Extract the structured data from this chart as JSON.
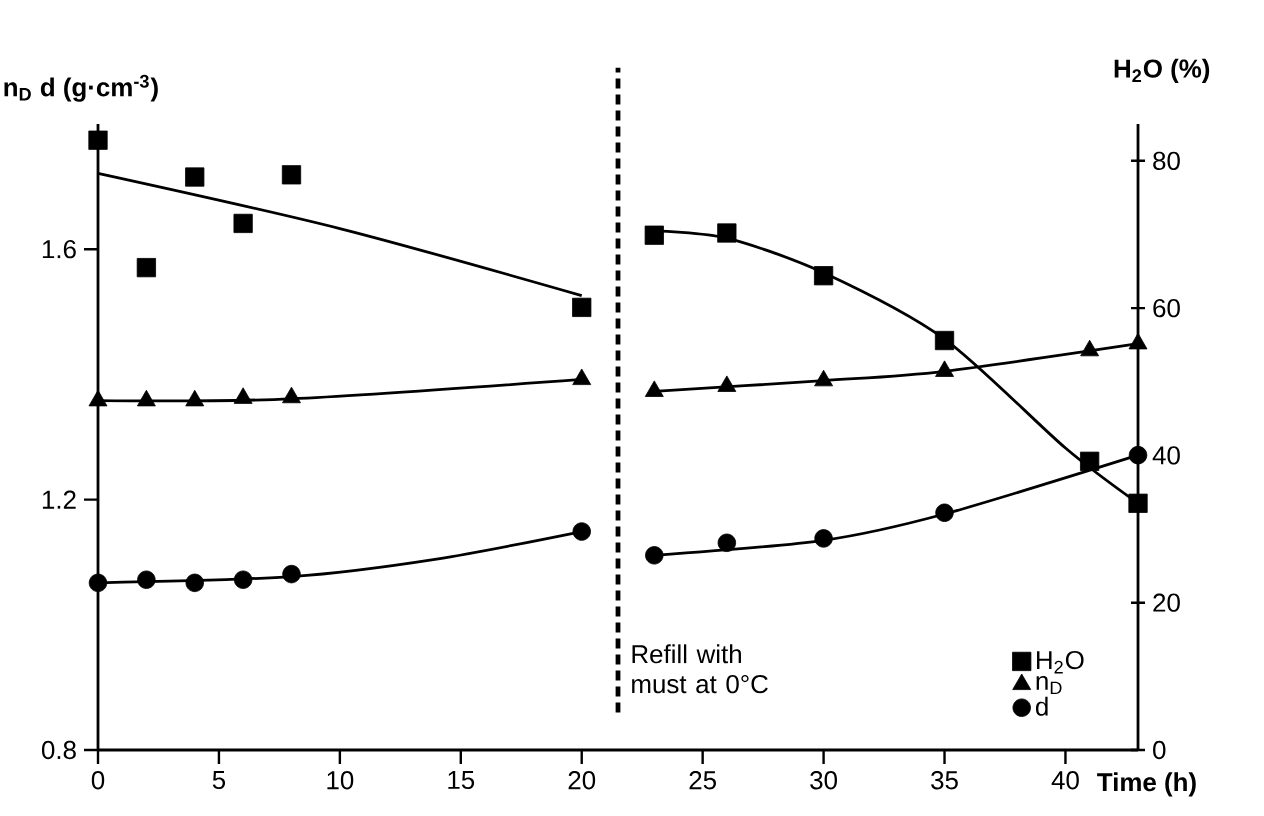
{
  "chart_data": {
    "type": "line",
    "xlabel": "Time (h)",
    "ylabel": "n$_{D}$ d (g·cm$^{-3}$)",
    "y2label": "H$_{2}$O (%)",
    "xlim": [
      0,
      43
    ],
    "xticks": [
      0,
      5,
      10,
      15,
      20,
      25,
      30,
      35,
      40
    ],
    "ylim": [
      0.8,
      1.8
    ],
    "yticks": [
      0.8,
      1.2,
      1.6
    ],
    "y2lim": [
      0,
      85
    ],
    "y2ticks": [
      0,
      20,
      40,
      60,
      80
    ],
    "legend": "bottom right",
    "ref_lines": [
      {
        "axis": "x",
        "value": 21.5,
        "label": "Refill with must at 0°C",
        "line_style": "dashed",
        "color": "#000000"
      }
    ],
    "series": [
      {
        "name": "H$_{2}$O",
        "type": "scatter",
        "marker": "square",
        "axis": "y2",
        "color": "#000000",
        "x": [
          0,
          2,
          4,
          6,
          8,
          20,
          23,
          26,
          30,
          35,
          41,
          43
        ],
        "values": [
          82.8,
          65.5,
          77.8,
          71.5,
          78.1,
          60.1,
          69.9,
          70.2,
          64.4,
          55.6,
          39.2,
          33.5
        ]
      },
      {
        "name": "n$_{D}$",
        "type": "scatter",
        "marker": "triangle",
        "axis": "y",
        "color": "#000000",
        "x": [
          0,
          2,
          4,
          6,
          8,
          20,
          23,
          26,
          30,
          35,
          41,
          43
        ],
        "values": [
          1.358,
          1.358,
          1.358,
          1.362,
          1.363,
          1.392,
          1.373,
          1.381,
          1.39,
          1.405,
          1.438,
          1.449
        ]
      },
      {
        "name": "d",
        "type": "scatter",
        "marker": "circle",
        "axis": "y",
        "color": "#000000",
        "x": [
          0,
          2,
          4,
          6,
          8,
          20,
          23,
          26,
          30,
          35,
          43
        ],
        "values": [
          1.067,
          1.072,
          1.067,
          1.072,
          1.081,
          1.149,
          1.111,
          1.131,
          1.138,
          1.179,
          1.271
        ]
      },
      {
        "axis": "y2",
        "color": "#000000",
        "x": [
          0,
          10,
          20
        ],
        "values": [
          78.3,
          70.8,
          61.7
        ]
      },
      {
        "axis": "y2",
        "color": "#000000",
        "x": [
          23,
          26,
          30,
          35,
          40,
          43
        ],
        "values": [
          70.5,
          69.5,
          64.8,
          55.8,
          41.0,
          33.5
        ]
      },
      {
        "axis": "y",
        "color": "#000000",
        "x": [
          0,
          8,
          20
        ],
        "values": [
          1.358,
          1.361,
          1.392
        ]
      },
      {
        "axis": "y",
        "color": "#000000",
        "x": [
          23,
          30,
          35,
          43
        ],
        "values": [
          1.373,
          1.39,
          1.405,
          1.449
        ]
      },
      {
        "axis": "y",
        "color": "#000000",
        "x": [
          0,
          8,
          14,
          20
        ],
        "values": [
          1.067,
          1.077,
          1.105,
          1.149
        ]
      },
      {
        "axis": "y",
        "color": "#000000",
        "x": [
          23,
          30,
          35,
          43
        ],
        "values": [
          1.111,
          1.135,
          1.177,
          1.271
        ]
      }
    ]
  }
}
